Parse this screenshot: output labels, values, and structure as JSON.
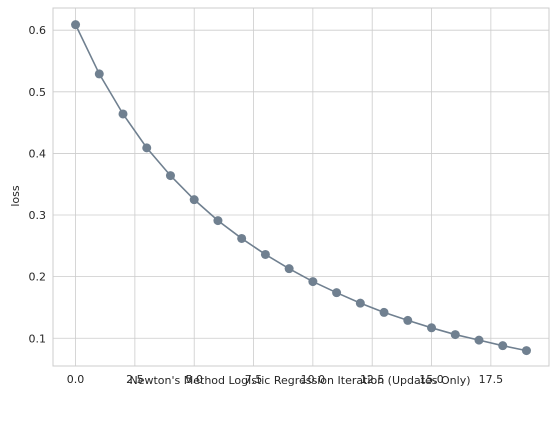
{
  "chart_data": {
    "type": "line",
    "title": "",
    "xlabel": "Newton's Method Logistic Regression Iteration (Updates Only)",
    "ylabel": "loss",
    "xlim": [
      -0.95,
      19.95
    ],
    "ylim": [
      0.055,
      0.636
    ],
    "xticks": [
      0.0,
      2.5,
      5.0,
      7.5,
      10.0,
      12.5,
      15.0,
      17.5
    ],
    "xtick_labels": [
      "0.0",
      "2.5",
      "5.0",
      "7.5",
      "10.0",
      "12.5",
      "15.0",
      "17.5"
    ],
    "yticks": [
      0.1,
      0.2,
      0.3,
      0.4,
      0.5,
      0.6
    ],
    "ytick_labels": [
      "0.1",
      "0.2",
      "0.3",
      "0.4",
      "0.5",
      "0.6"
    ],
    "grid": true,
    "line_color": "#708090",
    "marker": "circle",
    "series": [
      {
        "x": [
          0,
          1,
          2,
          3,
          4,
          5,
          6,
          7,
          8,
          9,
          10,
          11,
          12,
          13,
          14,
          15,
          16,
          17,
          18,
          19
        ],
        "values": [
          0.609,
          0.529,
          0.464,
          0.409,
          0.364,
          0.325,
          0.291,
          0.262,
          0.236,
          0.213,
          0.192,
          0.174,
          0.157,
          0.142,
          0.129,
          0.117,
          0.106,
          0.097,
          0.088,
          0.08
        ]
      }
    ]
  }
}
